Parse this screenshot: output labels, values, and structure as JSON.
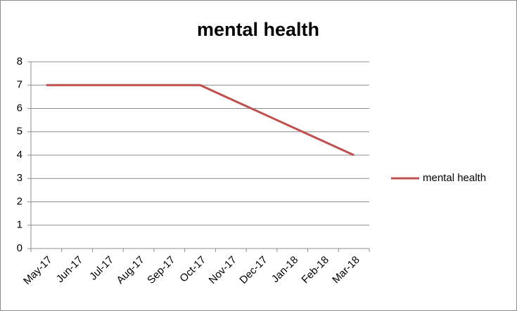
{
  "chart_data": {
    "type": "line",
    "title": "mental health",
    "categories": [
      "May-17",
      "Jun-17",
      "Jul-17",
      "Aug-17",
      "Sep-17",
      "Oct-17",
      "Nov-17",
      "Dec-17",
      "Jan-18",
      "Feb-18",
      "Mar-18"
    ],
    "series": [
      {
        "name": "mental health",
        "color": "#c0504d",
        "values": [
          7,
          7,
          7,
          7,
          7,
          7,
          6.4,
          5.8,
          5.2,
          4.6,
          4
        ]
      }
    ],
    "ylim": [
      0,
      8
    ],
    "yticks": [
      0,
      1,
      2,
      3,
      4,
      5,
      6,
      7,
      8
    ],
    "grid": true,
    "legend": "right"
  }
}
